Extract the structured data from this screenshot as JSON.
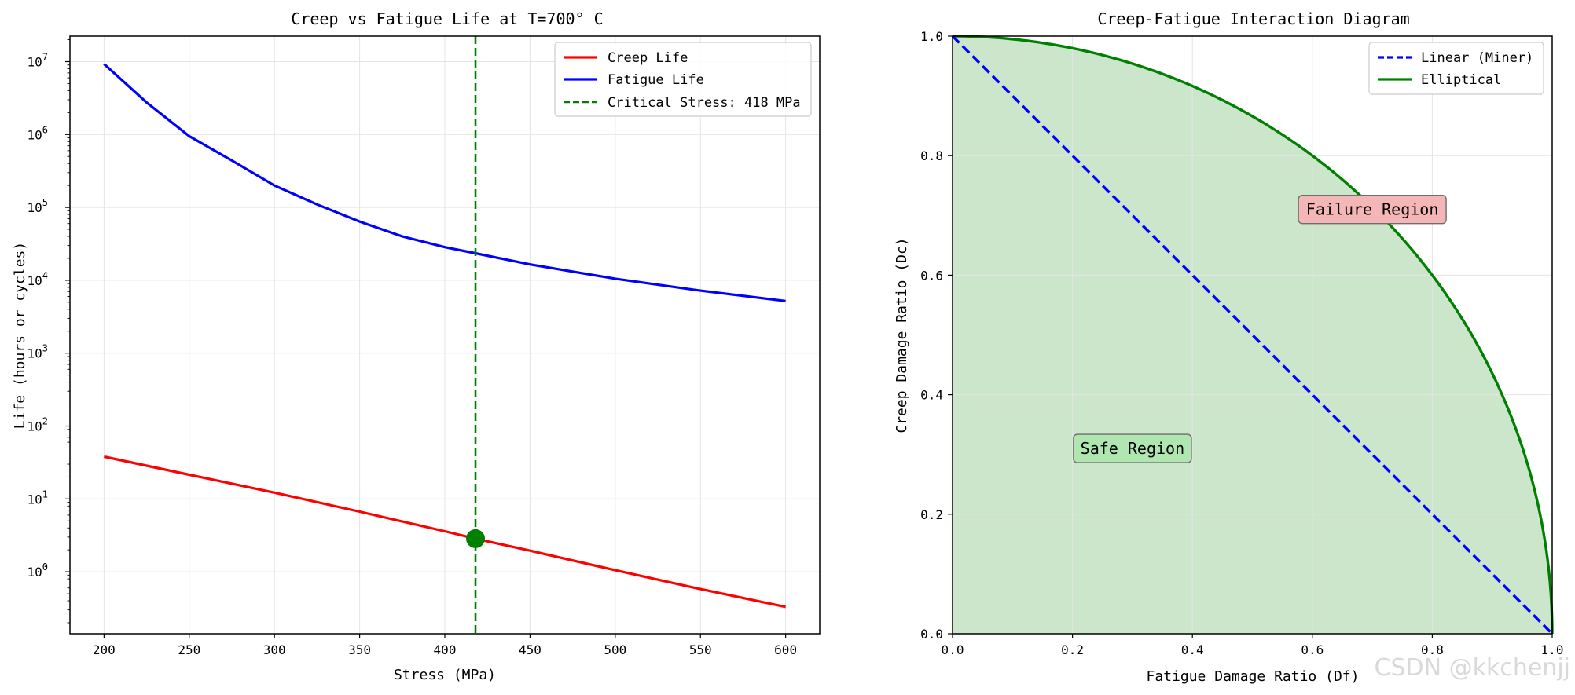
{
  "chart_data": [
    {
      "type": "line",
      "title": "Creep vs Fatigue Life at T=700° C",
      "xlabel": "Stress (MPa)",
      "ylabel": "Life (hours or cycles)",
      "xlim": [
        180,
        620
      ],
      "ylim_log10": [
        -0.85,
        7.35
      ],
      "yscale": "log",
      "xticks": [
        200,
        250,
        300,
        350,
        400,
        450,
        500,
        550,
        600
      ],
      "xtick_labels": [
        "200",
        "250",
        "300",
        "350",
        "400",
        "450",
        "500",
        "550",
        "600"
      ],
      "yticks_log10": [
        0,
        1,
        2,
        3,
        4,
        5,
        6,
        7
      ],
      "ytick_base": "10",
      "ytick_exponents": [
        "0",
        "1",
        "2",
        "3",
        "4",
        "5",
        "6",
        "7"
      ],
      "grid": true,
      "legend_position": "top-right",
      "series": [
        {
          "name": "Creep Life",
          "color": "#ff0000",
          "style": "solid",
          "x": [
            200,
            250,
            300,
            350,
            400,
            418,
            450,
            500,
            550,
            600
          ],
          "y": [
            38,
            21.5,
            12.2,
            6.7,
            3.6,
            2.85,
            1.95,
            1.05,
            0.58,
            0.33
          ]
        },
        {
          "name": "Fatigue Life",
          "color": "#0000ff",
          "style": "solid",
          "x": [
            200,
            225,
            250,
            275,
            300,
            325,
            350,
            375,
            400,
            418,
            450,
            500,
            550,
            600
          ],
          "y": [
            9300000,
            2750000,
            950000,
            440000,
            200000,
            110000,
            64000,
            40000,
            28500,
            23500,
            16500,
            10500,
            7200,
            5200
          ]
        }
      ],
      "critical": {
        "label": "Critical Stress: 418 MPa",
        "x": 418,
        "y": 2.85,
        "color": "#008000"
      }
    },
    {
      "type": "line",
      "title": "Creep-Fatigue Interaction Diagram",
      "xlabel": "Fatigue Damage Ratio (Df)",
      "ylabel": "Creep Damage Ratio (Dc)",
      "xlim": [
        0,
        1
      ],
      "ylim": [
        0,
        1
      ],
      "xticks": [
        0,
        0.2,
        0.4,
        0.6,
        0.8,
        1.0
      ],
      "xtick_labels": [
        "0.0",
        "0.2",
        "0.4",
        "0.6",
        "0.8",
        "1.0"
      ],
      "yticks": [
        0,
        0.2,
        0.4,
        0.6,
        0.8,
        1.0
      ],
      "ytick_labels": [
        "0.0",
        "0.2",
        "0.4",
        "0.6",
        "0.8",
        "1.0"
      ],
      "grid": true,
      "legend_position": "top-right",
      "series": [
        {
          "name": "Linear (Miner)",
          "color": "#0000ff",
          "style": "dashed",
          "x": [
            0,
            1
          ],
          "y": [
            1,
            0
          ]
        },
        {
          "name": "Elliptical",
          "color": "#008000",
          "style": "solid",
          "equation": "Dc = sqrt(1 - Df^2)"
        }
      ],
      "fill": {
        "color": "#008000",
        "alpha": 0.2,
        "under": "Elliptical"
      },
      "annotations": [
        {
          "text": "Failure Region",
          "x": 0.7,
          "y": 0.71,
          "bg": "#f4b6b6"
        },
        {
          "text": "Safe Region",
          "x": 0.3,
          "y": 0.31,
          "bg": "#b0e6b0"
        }
      ]
    }
  ],
  "watermark": "CSDN @kkchenjj"
}
